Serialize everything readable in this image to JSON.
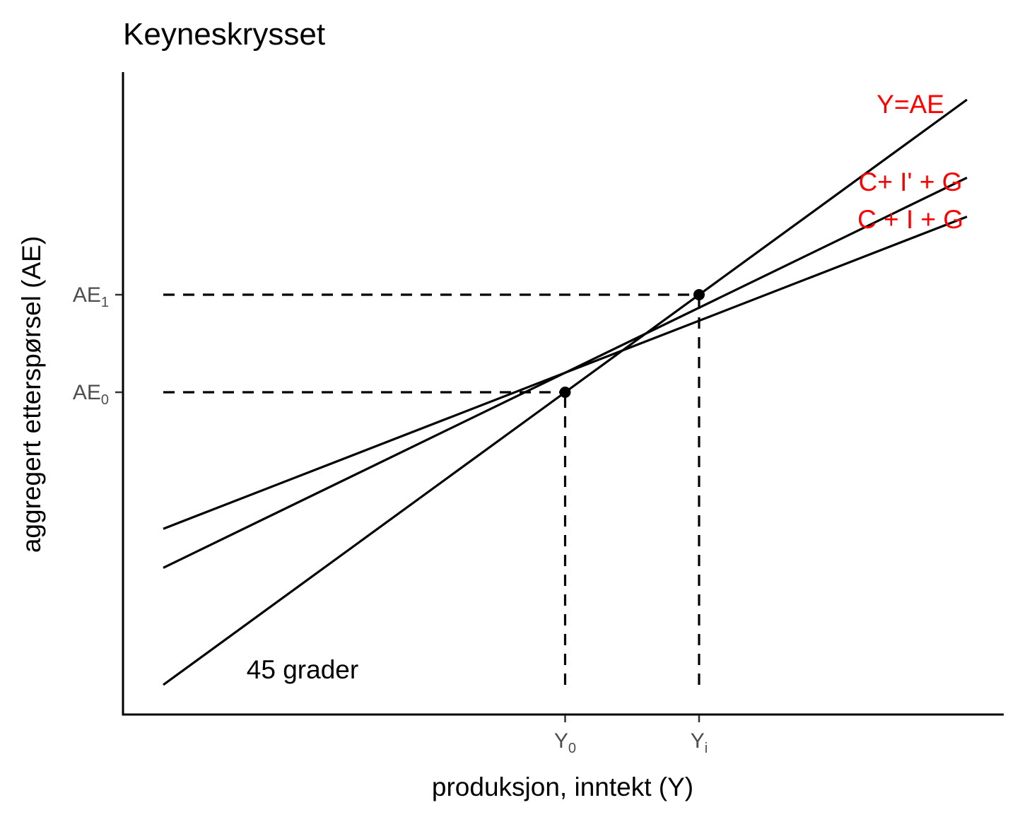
{
  "chart_data": {
    "type": "line",
    "title": "Keyneskrysset",
    "xlabel": "produksjon, inntekt (Y)",
    "ylabel": "aggregert etterspørsel (AE)",
    "xlim": [
      0,
      100
    ],
    "ylim": [
      0,
      100
    ],
    "x_ticks": [
      {
        "id": "y0",
        "base": "Y",
        "sub": "0",
        "value": 50
      },
      {
        "id": "yi",
        "base": "Y",
        "sub": "i",
        "value": 65
      }
    ],
    "y_ticks": [
      {
        "id": "ae0",
        "base": "AE",
        "sub": "0",
        "value": 50
      },
      {
        "id": "ae1",
        "base": "AE",
        "sub": "1",
        "value": 65
      }
    ],
    "series": [
      {
        "id": "ye",
        "name": "Y=AE",
        "x": [
          5,
          95
        ],
        "y": [
          5,
          95
        ]
      },
      {
        "id": "ci2g",
        "name": "C+ I' + G",
        "x": [
          5,
          95
        ],
        "y": [
          23,
          83
        ]
      },
      {
        "id": "cig",
        "name": "C + I + G",
        "x": [
          5,
          95
        ],
        "y": [
          29,
          77
        ]
      }
    ],
    "guides": [
      {
        "id": "h-ae0",
        "x": [
          5,
          50
        ],
        "y": [
          50,
          50
        ]
      },
      {
        "id": "h-ae1",
        "x": [
          5,
          65
        ],
        "y": [
          65,
          65
        ]
      },
      {
        "id": "v-y0",
        "x": [
          50,
          50
        ],
        "y": [
          5,
          50
        ]
      },
      {
        "id": "v-yi",
        "x": [
          65,
          65
        ],
        "y": [
          5,
          65
        ]
      }
    ],
    "points": [
      {
        "x": 50,
        "y": 50
      },
      {
        "x": 65,
        "y": 65
      }
    ],
    "annotations": [
      {
        "id": "deg",
        "text": "45 grader",
        "x": 13,
        "y": 7
      }
    ],
    "series_label_color": "#ff0000",
    "line_color": "#000000",
    "grid": false,
    "legend": "none"
  }
}
